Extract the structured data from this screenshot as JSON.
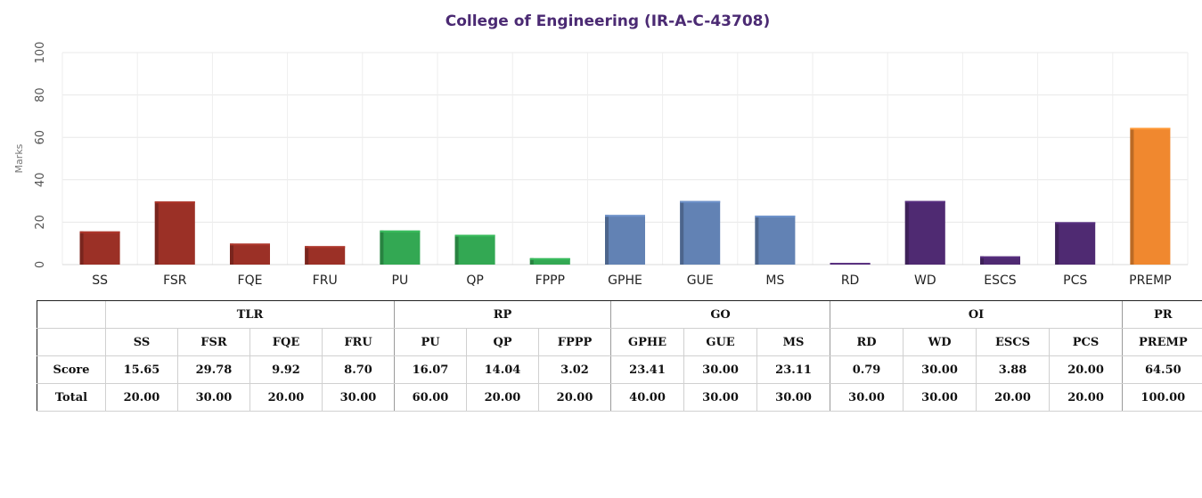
{
  "chart_data": {
    "type": "bar",
    "title": "College of Engineering (IR-A-C-43708)",
    "ylabel": "Marks",
    "xlabel": "",
    "ylim": [
      0,
      100
    ],
    "yticks": [
      "0",
      "20",
      "40",
      "60",
      "80",
      "100"
    ],
    "grid": true,
    "categories": [
      "SS",
      "FSR",
      "FQE",
      "FRU",
      "PU",
      "QP",
      "FPPP",
      "GPHE",
      "GUE",
      "MS",
      "RD",
      "WD",
      "ESCS",
      "PCS",
      "PREMP"
    ],
    "values": [
      15.65,
      29.78,
      9.92,
      8.7,
      16.07,
      14.04,
      3.02,
      23.41,
      30.0,
      23.11,
      0.79,
      30.0,
      3.88,
      20.0,
      64.5
    ],
    "groups": [
      "TLR",
      "TLR",
      "TLR",
      "TLR",
      "RP",
      "RP",
      "RP",
      "GO",
      "GO",
      "GO",
      "OI",
      "OI",
      "OI",
      "OI",
      "PR"
    ],
    "group_colors": {
      "TLR": "#9b3026",
      "RP": "#33a853",
      "GO": "#6282b4",
      "OI": "#4f2a72",
      "PR": "#f0882f"
    }
  },
  "table": {
    "groups": [
      {
        "name": "TLR",
        "span": 4
      },
      {
        "name": "RP",
        "span": 3
      },
      {
        "name": "GO",
        "span": 3
      },
      {
        "name": "OI",
        "span": 4
      },
      {
        "name": "PR",
        "span": 1
      }
    ],
    "params": [
      "SS",
      "FSR",
      "FQE",
      "FRU",
      "PU",
      "QP",
      "FPPP",
      "GPHE",
      "GUE",
      "MS",
      "RD",
      "WD",
      "ESCS",
      "PCS",
      "PREMP"
    ],
    "rows": [
      {
        "label": "Score",
        "values": [
          "15.65",
          "29.78",
          "9.92",
          "8.70",
          "16.07",
          "14.04",
          "3.02",
          "23.41",
          "30.00",
          "23.11",
          "0.79",
          "30.00",
          "3.88",
          "20.00",
          "64.50"
        ]
      },
      {
        "label": "Total",
        "values": [
          "20.00",
          "30.00",
          "20.00",
          "30.00",
          "60.00",
          "20.00",
          "20.00",
          "40.00",
          "30.00",
          "30.00",
          "30.00",
          "30.00",
          "20.00",
          "20.00",
          "100.00"
        ]
      }
    ]
  }
}
